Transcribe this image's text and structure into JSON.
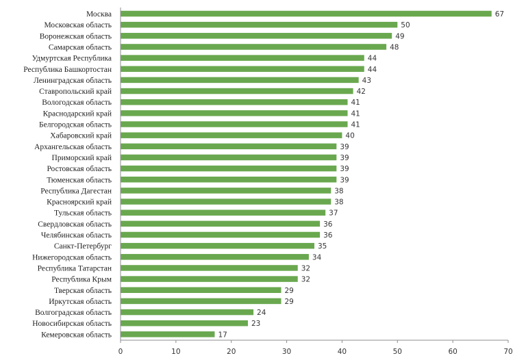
{
  "chart_data": {
    "type": "bar",
    "orientation": "horizontal",
    "title": "",
    "xlabel": "",
    "ylabel": "",
    "xlim": [
      0,
      70
    ],
    "x_ticks": [
      0,
      10,
      20,
      30,
      40,
      50,
      60,
      70
    ],
    "grid": false,
    "bar_color": "#6aa84f",
    "categories": [
      "Москва",
      "Московская область",
      "Воронежская область",
      "Самарская область",
      "Удмуртская Республика",
      "Республика Башкортостан",
      "Ленинградская область",
      "Ставропольский край",
      "Вологодская область",
      "Краснодарский край",
      "Белгородская область",
      "Хабаровский край",
      "Архангельская область",
      "Приморский край",
      "Ростовская область",
      "Тюменская область",
      "Республика Дагестан",
      "Красноярский край",
      "Тульская область",
      "Свердловская область",
      "Челябинская область",
      "Санкт-Петербург",
      "Нижегородская область",
      "Республика Татарстан",
      "Республика Крым",
      "Тверская область",
      "Иркутская область",
      "Волгоградская область",
      "Новосибирская область",
      "Кемеровская область"
    ],
    "values": [
      67,
      50,
      49,
      48,
      44,
      44,
      43,
      42,
      41,
      41,
      41,
      40,
      39,
      39,
      39,
      39,
      38,
      38,
      37,
      36,
      36,
      35,
      34,
      32,
      32,
      29,
      29,
      24,
      23,
      17
    ]
  }
}
